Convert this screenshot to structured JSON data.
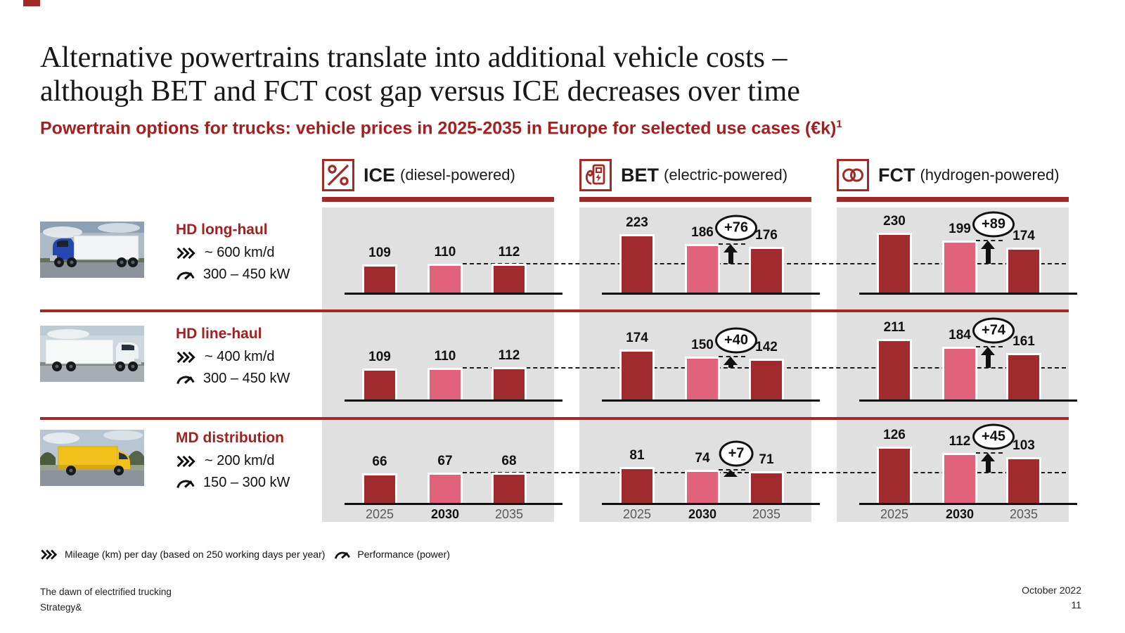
{
  "slide": {
    "title_line1": "Alternative powertrains translate into additional vehicle costs –",
    "title_line2": "although BET and FCT cost gap versus ICE decreases over time",
    "subtitle": "Powertrain options for trucks: vehicle prices in 2025-2035 in Europe for selected use cases (€k)",
    "subtitle_sup": "1",
    "footer_left_line1": "The dawn of electrified trucking",
    "footer_left_line2": "Strategy&",
    "footer_date": "October 2022",
    "footer_page": "11"
  },
  "legend": {
    "mileage_label": "Mileage (km) per day (based on 250 working days per year)",
    "performance_label": "Performance (power)"
  },
  "colors": {
    "brand_red": "#9e2b25",
    "use_case_red": "#a32020",
    "bar_dark": "#a02b2e",
    "bar_pink": "#e0627b",
    "panel_gray": "#e0e0e0",
    "axis_black": "#111111",
    "year_gray": "#595959"
  },
  "chart_data": {
    "type": "bar",
    "title": "Powertrain options for trucks: vehicle prices in 2025-2035 in Europe for selected use cases (€k)",
    "unit": "€k",
    "categories": [
      "2025",
      "2030",
      "2035"
    ],
    "category_styles": [
      "dark",
      "pink",
      "dark"
    ],
    "reference": "dashed line = ICE 2030 price level",
    "legend_position": "none",
    "grid": false,
    "powertrains": [
      {
        "key": "ICE",
        "label": "ICE",
        "sublabel": "(diesel-powered)",
        "icon": "engine-icon"
      },
      {
        "key": "BET",
        "label": "BET",
        "sublabel": "(electric-powered)",
        "icon": "ev-charger-icon"
      },
      {
        "key": "FCT",
        "label": "FCT",
        "sublabel": "(hydrogen-powered)",
        "icon": "hydrogen-molecule-icon"
      }
    ],
    "rows": [
      {
        "use_case": "HD long-haul",
        "mileage": "~ 600 km/d",
        "power": "300 – 450 kW",
        "series": [
          {
            "name": "ICE",
            "values": [
              109,
              110,
              112
            ]
          },
          {
            "name": "BET",
            "values": [
              223,
              186,
              176
            ],
            "delta_vs_ice_2030": "+76"
          },
          {
            "name": "FCT",
            "values": [
              230,
              199,
              174
            ],
            "delta_vs_ice_2030": "+89"
          }
        ]
      },
      {
        "use_case": "HD line-haul",
        "mileage": "~ 400 km/d",
        "power": "300 – 450 kW",
        "series": [
          {
            "name": "ICE",
            "values": [
              109,
              110,
              112
            ]
          },
          {
            "name": "BET",
            "values": [
              174,
              150,
              142
            ],
            "delta_vs_ice_2030": "+40"
          },
          {
            "name": "FCT",
            "values": [
              211,
              184,
              161
            ],
            "delta_vs_ice_2030": "+74"
          }
        ]
      },
      {
        "use_case": "MD distribution",
        "mileage": "~ 200 km/d",
        "power": "150 – 300 kW",
        "series": [
          {
            "name": "ICE",
            "values": [
              66,
              67,
              68
            ]
          },
          {
            "name": "BET",
            "values": [
              81,
              74,
              71
            ],
            "delta_vs_ice_2030": "+7"
          },
          {
            "name": "FCT",
            "values": [
              126,
              112,
              103
            ],
            "delta_vs_ice_2030": "+45"
          }
        ]
      }
    ]
  }
}
